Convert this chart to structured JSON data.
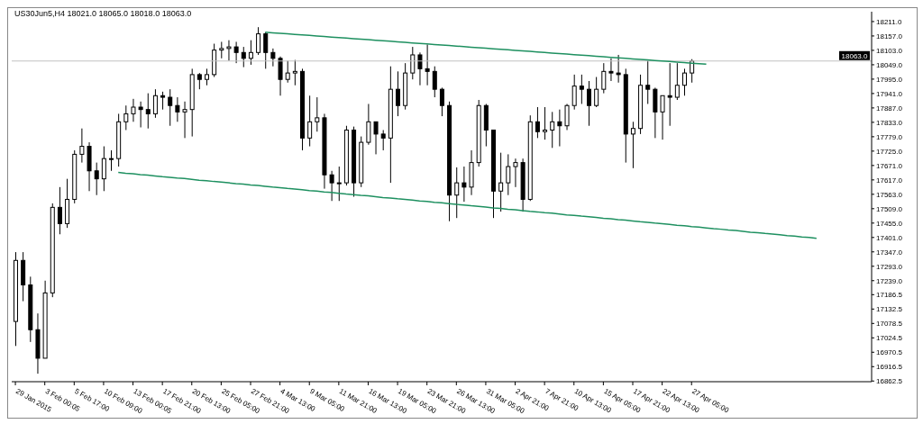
{
  "chart_data": {
    "type": "candlestick",
    "title": "US30Jun5,H4  18021.0 18065.0 18018.0 18063.0",
    "categories": [
      "29 Jan 2015",
      null,
      null,
      null,
      "3 Feb 00:05",
      null,
      null,
      null,
      "5 Feb 17:00",
      null,
      null,
      null,
      "10 Feb 09:00",
      null,
      null,
      null,
      "13 Feb 00:05",
      null,
      null,
      null,
      "17 Feb 21:00",
      null,
      null,
      null,
      "20 Feb 13:00",
      null,
      null,
      null,
      "25 Feb 05:00",
      null,
      null,
      null,
      "27 Feb 21:00",
      null,
      null,
      null,
      "4 Mar 13:00",
      null,
      null,
      null,
      "9 Mar 05:00",
      null,
      null,
      null,
      "11 Mar 21:00",
      null,
      null,
      null,
      "16 Mar 13:00",
      null,
      null,
      null,
      "19 Mar 05:00",
      null,
      null,
      null,
      "23 Mar 21:00",
      null,
      null,
      null,
      "26 Mar 13:00",
      null,
      null,
      null,
      "31 Mar 05:00",
      null,
      null,
      null,
      "2 Apr 21:00",
      null,
      null,
      null,
      "7 Apr 21:00",
      null,
      null,
      null,
      "10 Apr 13:00",
      null,
      null,
      null,
      "15 Apr 05:00",
      null,
      null,
      null,
      "17 Apr 21:00",
      null,
      null,
      null,
      "22 Apr 13:00",
      null,
      null,
      null,
      "27 Apr 05:00",
      null,
      null,
      null,
      null,
      null,
      null,
      null,
      null,
      null,
      null,
      null,
      null,
      null,
      null,
      null,
      null,
      null,
      null,
      null,
      null,
      null,
      null,
      null,
      null
    ],
    "ylim": [
      16860,
      18248
    ],
    "yticks": [
      {
        "value": 18211,
        "label": "18211.0"
      },
      {
        "value": 18157,
        "label": "18157.0"
      },
      {
        "value": 18103,
        "label": "18103.0"
      },
      {
        "value": 18049,
        "label": "18049.0"
      },
      {
        "value": 17995,
        "label": "17995.0"
      },
      {
        "value": 17941,
        "label": "17941.0"
      },
      {
        "value": 17887,
        "label": "17887.0"
      },
      {
        "value": 17833,
        "label": "17833.0"
      },
      {
        "value": 17779,
        "label": "17779.0"
      },
      {
        "value": 17725,
        "label": "17725.0"
      },
      {
        "value": 17671,
        "label": "17671.0"
      },
      {
        "value": 17617,
        "label": "17617.0"
      },
      {
        "value": 17563,
        "label": "17563.0"
      },
      {
        "value": 17509,
        "label": "17509.0"
      },
      {
        "value": 17455,
        "label": "17455.0"
      },
      {
        "value": 17401,
        "label": "17401.0"
      },
      {
        "value": 17347,
        "label": "17347.0"
      },
      {
        "value": 17293,
        "label": "17293.0"
      },
      {
        "value": 17239,
        "label": "17239.0"
      },
      {
        "value": 17186.5,
        "label": "17186.5"
      },
      {
        "value": 17132.5,
        "label": "17132.5"
      },
      {
        "value": 17078.5,
        "label": "17078.5"
      },
      {
        "value": 17024.5,
        "label": "17024.5"
      },
      {
        "value": 16970.5,
        "label": "16970.5"
      },
      {
        "value": 16916.5,
        "label": "16916.5"
      },
      {
        "value": 16862.5,
        "label": "16862.5"
      }
    ],
    "ref_lines": [
      {
        "axis": "y",
        "value": 18063,
        "label": "18063.0",
        "color": "#c0c0c0"
      }
    ],
    "series": [
      {
        "color": "#000000",
        "ohlc": [
          [
            17086,
            17346,
            16994,
            17315
          ],
          [
            17315,
            17346,
            17162,
            17223
          ],
          [
            17223,
            17254,
            17009,
            17055
          ],
          [
            17055,
            17116,
            16890,
            16948
          ],
          [
            16948,
            17239,
            16948,
            17193
          ],
          [
            17193,
            17529,
            17177,
            17514
          ],
          [
            17514,
            17590,
            17413,
            17453
          ],
          [
            17453,
            17621,
            17437,
            17544
          ],
          [
            17544,
            17728,
            17529,
            17713
          ],
          [
            17713,
            17810,
            17682,
            17743
          ],
          [
            17743,
            17758,
            17575,
            17651
          ],
          [
            17651,
            17682,
            17560,
            17621
          ],
          [
            17621,
            17743,
            17575,
            17697
          ],
          [
            17697,
            17728,
            17651,
            17697
          ],
          [
            17697,
            17865,
            17667,
            17835
          ],
          [
            17835,
            17896,
            17804,
            17865
          ],
          [
            17865,
            17921,
            17835,
            17890
          ],
          [
            17890,
            17911,
            17814,
            17881
          ],
          [
            17881,
            17942,
            17810,
            17865
          ],
          [
            17865,
            17957,
            17850,
            17933
          ],
          [
            17933,
            17948,
            17881,
            17927
          ],
          [
            17927,
            17957,
            17820,
            17896
          ],
          [
            17896,
            17927,
            17835,
            17872
          ],
          [
            17872,
            17911,
            17774,
            17881
          ],
          [
            17881,
            18034,
            17780,
            18012
          ],
          [
            18012,
            18018,
            17957,
            17994
          ],
          [
            17994,
            18034,
            17972,
            18012
          ],
          [
            18012,
            18128,
            18003,
            18104
          ],
          [
            18104,
            18135,
            18073,
            18110
          ],
          [
            18110,
            18141,
            18064,
            18116
          ],
          [
            18116,
            18135,
            18055,
            18095
          ],
          [
            18095,
            18116,
            18040,
            18073
          ],
          [
            18073,
            18141,
            18049,
            18095
          ],
          [
            18095,
            18190,
            18086,
            18165
          ],
          [
            18165,
            18171,
            18034,
            18095
          ],
          [
            18095,
            18110,
            18043,
            18073
          ],
          [
            18073,
            18080,
            17933,
            17994
          ],
          [
            17994,
            18064,
            17982,
            18018
          ],
          [
            18018,
            18067,
            17972,
            18024
          ],
          [
            18024,
            18034,
            17728,
            17774
          ],
          [
            17774,
            17933,
            17743,
            17835
          ],
          [
            17835,
            17927,
            17798,
            17850
          ],
          [
            17850,
            17865,
            17584,
            17636
          ],
          [
            17636,
            17651,
            17538,
            17606
          ],
          [
            17606,
            17667,
            17538,
            17606
          ],
          [
            17606,
            17820,
            17596,
            17804
          ],
          [
            17804,
            17817,
            17554,
            17606
          ],
          [
            17606,
            17780,
            17590,
            17758
          ],
          [
            17758,
            17902,
            17749,
            17835
          ],
          [
            17835,
            17835,
            17713,
            17789
          ],
          [
            17789,
            17804,
            17728,
            17774
          ],
          [
            17774,
            18043,
            17606,
            17957
          ],
          [
            17957,
            18024,
            17856,
            17896
          ],
          [
            17896,
            18055,
            17881,
            18018
          ],
          [
            18018,
            18116,
            17994,
            18086
          ],
          [
            18086,
            18095,
            17972,
            18034
          ],
          [
            18034,
            18125,
            17972,
            18024
          ],
          [
            18024,
            18043,
            17927,
            17957
          ],
          [
            17957,
            17963,
            17856,
            17896
          ],
          [
            17896,
            17911,
            17462,
            17560
          ],
          [
            17560,
            17664,
            17474,
            17606
          ],
          [
            17606,
            17667,
            17535,
            17590
          ],
          [
            17590,
            17728,
            17560,
            17682
          ],
          [
            17682,
            17917,
            17667,
            17896
          ],
          [
            17896,
            17902,
            17743,
            17804
          ],
          [
            17804,
            17804,
            17474,
            17575
          ],
          [
            17575,
            17719,
            17498,
            17606
          ],
          [
            17606,
            17713,
            17560,
            17667
          ],
          [
            17667,
            17697,
            17590,
            17682
          ],
          [
            17682,
            17697,
            17498,
            17544
          ],
          [
            17544,
            17859,
            17538,
            17835
          ],
          [
            17835,
            17890,
            17774,
            17798
          ],
          [
            17798,
            17890,
            17768,
            17804
          ],
          [
            17804,
            17872,
            17737,
            17835
          ],
          [
            17835,
            17881,
            17743,
            17820
          ],
          [
            17820,
            17902,
            17804,
            17896
          ],
          [
            17896,
            18012,
            17881,
            17969
          ],
          [
            17969,
            18012,
            17902,
            17957
          ],
          [
            17957,
            17988,
            17820,
            17896
          ],
          [
            17896,
            18003,
            17890,
            17957
          ],
          [
            17957,
            18055,
            17942,
            18024
          ],
          [
            18024,
            18073,
            17988,
            18018
          ],
          [
            18018,
            18086,
            17982,
            18012
          ],
          [
            18012,
            18034,
            17682,
            17789
          ],
          [
            17789,
            17835,
            17661,
            17810
          ],
          [
            17810,
            18012,
            17789,
            17972
          ],
          [
            17972,
            18064,
            17902,
            17957
          ],
          [
            17957,
            17963,
            17774,
            17872
          ],
          [
            17872,
            17933,
            17768,
            17933
          ],
          [
            17933,
            18055,
            17820,
            17927
          ],
          [
            17927,
            18055,
            17917,
            17972
          ],
          [
            17972,
            18034,
            17933,
            18018
          ],
          [
            18018,
            18070,
            17982,
            18063
          ],
          null,
          null,
          null,
          null,
          null,
          null,
          null,
          null,
          null,
          null,
          null,
          null,
          null,
          null,
          null,
          null,
          null,
          null,
          null,
          null,
          null,
          null,
          null,
          null
        ]
      },
      {
        "type": "line",
        "color": "#1e9060",
        "values": [
          null,
          null,
          null,
          null,
          null,
          null,
          null,
          null,
          null,
          null,
          null,
          null,
          null,
          null,
          null,
          null,
          null,
          null,
          null,
          null,
          null,
          null,
          null,
          null,
          null,
          null,
          null,
          null,
          null,
          null,
          null,
          null,
          null,
          null,
          18171,
          18169,
          18167,
          18165,
          18163,
          18161,
          18159,
          18157,
          18155,
          18153,
          18151,
          18149,
          18147,
          18145,
          18143,
          18141,
          18139,
          18137,
          18135,
          18133,
          18131,
          18129,
          18127,
          18125,
          18123,
          18121,
          18119,
          18117,
          18115,
          18113,
          18111,
          18109,
          18107,
          18105,
          18103,
          18101,
          18099,
          18097,
          18095,
          18093,
          18091,
          18089,
          18087,
          18085,
          18083,
          18081,
          18079,
          18077,
          18075,
          18073,
          18071,
          18069,
          18067,
          18065,
          18063,
          18061,
          18059,
          18057,
          18055,
          18053,
          18051,
          null,
          null,
          null,
          null,
          null,
          null,
          null,
          null,
          null,
          null,
          null,
          null,
          null,
          null,
          null,
          null,
          null,
          null,
          null,
          null,
          null,
          null
        ]
      },
      {
        "type": "line",
        "color": "#1e9060",
        "values": [
          null,
          null,
          null,
          null,
          null,
          null,
          null,
          null,
          null,
          null,
          null,
          null,
          null,
          null,
          17645,
          17642,
          17640,
          17637,
          17635,
          17632,
          17629,
          17627,
          17624,
          17622,
          17619,
          17616,
          17614,
          17611,
          17609,
          17606,
          17603,
          17601,
          17598,
          17596,
          17593,
          17590,
          17588,
          17585,
          17583,
          17580,
          17577,
          17575,
          17572,
          17570,
          17567,
          17564,
          17562,
          17559,
          17557,
          17554,
          17551,
          17549,
          17546,
          17544,
          17541,
          17538,
          17536,
          17533,
          17531,
          17528,
          17525,
          17523,
          17520,
          17518,
          17515,
          17512,
          17510,
          17507,
          17505,
          17502,
          17499,
          17497,
          17494,
          17492,
          17489,
          17486,
          17484,
          17481,
          17479,
          17476,
          17473,
          17471,
          17468,
          17466,
          17463,
          17460,
          17458,
          17455,
          17453,
          17450,
          17447,
          17445,
          17442,
          17440,
          17437,
          17434,
          17432,
          17429,
          17427,
          17424,
          17421,
          17419,
          17416,
          17414,
          17411,
          17408,
          17406,
          17403,
          17401,
          17398,
          null,
          null,
          null,
          null,
          null,
          null,
          null
        ]
      }
    ]
  }
}
